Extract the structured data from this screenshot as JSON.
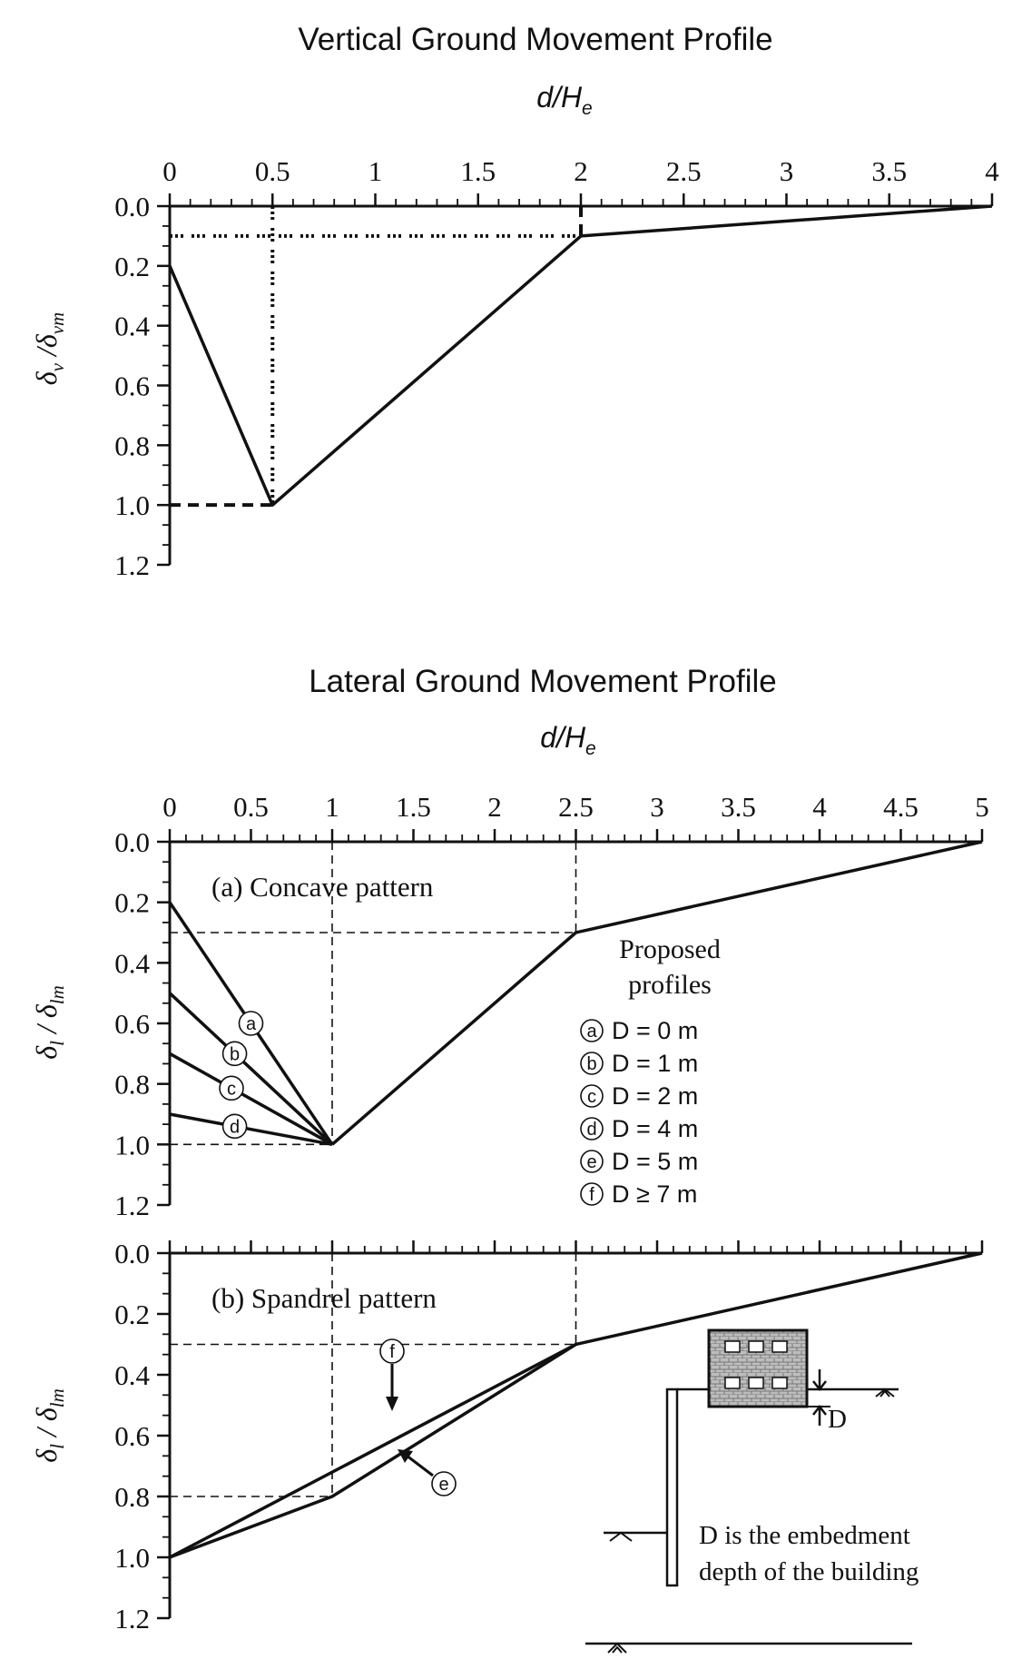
{
  "chart_data": [
    {
      "type": "line",
      "title": "Vertical Ground Movement Profile",
      "xlabel": "d/He",
      "ylabel": "δv/δvm",
      "xlim": [
        0,
        4
      ],
      "ylim": [
        1.2,
        0.0
      ],
      "x_ticks": [
        "0",
        "0.5",
        "1",
        "1.5",
        "2",
        "2.5",
        "3",
        "3.5",
        "4"
      ],
      "y_ticks": [
        "0.0",
        "0.2",
        "0.4",
        "0.6",
        "0.8",
        "1.0",
        "1.2"
      ],
      "series": [
        {
          "x": [
            0,
            0.5,
            2,
            4
          ],
          "y": [
            0.2,
            1.0,
            0.1,
            0.0
          ]
        }
      ],
      "guides": [
        {
          "points": [
            [
              0,
              0.1
            ],
            [
              2,
              0.1
            ]
          ],
          "style": "dotted"
        },
        {
          "points": [
            [
              0.5,
              0
            ],
            [
              0.5,
              1.0
            ]
          ],
          "style": "dotted"
        },
        {
          "points": [
            [
              0,
              1.0
            ],
            [
              0.5,
              1.0
            ]
          ],
          "style": "dashed"
        },
        {
          "points": [
            [
              2,
              0
            ],
            [
              2,
              0.1
            ]
          ],
          "style": "dashed"
        }
      ]
    },
    {
      "type": "line",
      "title": "Lateral Ground Movement Profile",
      "xlabel": "d/He",
      "ylabel": "δl / δlm",
      "xlim": [
        0,
        5
      ],
      "ylim": [
        1.2,
        0.0
      ],
      "x_ticks": [
        "0",
        "0.5",
        "1",
        "1.5",
        "2",
        "2.5",
        "3",
        "3.5",
        "4",
        "4.5",
        "5"
      ],
      "y_ticks": [
        "0.0",
        "0.2",
        "0.4",
        "0.6",
        "0.8",
        "1.0",
        "1.2"
      ],
      "pattern_label": "(a) Concave pattern",
      "series": [
        {
          "x": [
            0,
            1
          ],
          "y": [
            0.2,
            1.0
          ],
          "marker": "a"
        },
        {
          "x": [
            0,
            1
          ],
          "y": [
            0.5,
            1.0
          ],
          "marker": "b"
        },
        {
          "x": [
            0,
            1
          ],
          "y": [
            0.7,
            1.0
          ],
          "marker": "c"
        },
        {
          "x": [
            0,
            1
          ],
          "y": [
            0.9,
            1.0
          ],
          "marker": "d"
        },
        {
          "x": [
            1,
            2.5,
            5
          ],
          "y": [
            1.0,
            0.3,
            0.0
          ]
        }
      ],
      "guides": [
        {
          "points": [
            [
              0,
              0.3
            ],
            [
              2.5,
              0.3
            ]
          ],
          "style": "dashed"
        },
        {
          "points": [
            [
              2.5,
              0
            ],
            [
              2.5,
              0.3
            ]
          ],
          "style": "dashed"
        },
        {
          "points": [
            [
              1,
              0
            ],
            [
              1,
              1.0
            ]
          ],
          "style": "dashed"
        },
        {
          "points": [
            [
              0,
              1.0
            ],
            [
              1,
              1.0
            ]
          ],
          "style": "dashed"
        }
      ],
      "legend": {
        "title": [
          "Proposed",
          "profiles"
        ],
        "entries": [
          {
            "marker": "a",
            "text": "D = 0 m"
          },
          {
            "marker": "b",
            "text": "D = 1 m"
          },
          {
            "marker": "c",
            "text": "D = 2 m"
          },
          {
            "marker": "d",
            "text": "D = 4 m"
          },
          {
            "marker": "e",
            "text": "D = 5 m"
          },
          {
            "marker": "f",
            "text": "D ≥ 7 m"
          }
        ]
      }
    },
    {
      "type": "line",
      "xlim": [
        0,
        5
      ],
      "ylim": [
        1.2,
        0.0
      ],
      "ylabel": "δl / δlm",
      "y_ticks": [
        "0.0",
        "0.2",
        "0.4",
        "0.6",
        "0.8",
        "1.0",
        "1.2"
      ],
      "pattern_label": "(b) Spandrel pattern",
      "series": [
        {
          "x": [
            0,
            2.5,
            5
          ],
          "y": [
            1.0,
            0.3,
            0.0
          ],
          "marker": "f"
        },
        {
          "x": [
            0,
            1,
            2.5
          ],
          "y": [
            1.0,
            0.8,
            0.3
          ],
          "marker": "e"
        }
      ],
      "guides": [
        {
          "points": [
            [
              0,
              0.3
            ],
            [
              2.5,
              0.3
            ]
          ],
          "style": "dashed"
        },
        {
          "points": [
            [
              2.5,
              0
            ],
            [
              2.5,
              0.3
            ]
          ],
          "style": "dashed"
        },
        {
          "points": [
            [
              1,
              0
            ],
            [
              1,
              0.8
            ]
          ],
          "style": "dashed"
        },
        {
          "points": [
            [
              0,
              0.8
            ],
            [
              1,
              0.8
            ]
          ],
          "style": "dashed"
        }
      ],
      "inset": {
        "dimension_label": "D",
        "note": [
          "D is the embedment",
          "depth of the building"
        ]
      }
    }
  ]
}
